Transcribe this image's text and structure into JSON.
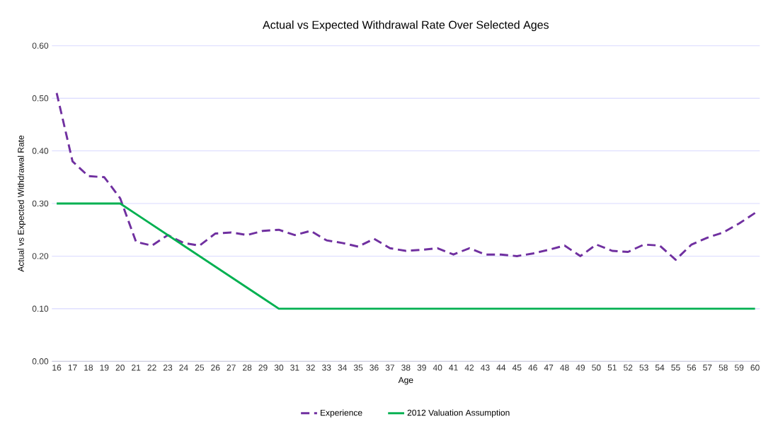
{
  "chart_data": {
    "type": "line",
    "title": "Actual vs Expected Withdrawal Rate Over Selected Ages",
    "xlabel": "Age",
    "ylabel": "Actual vs Expected Withdrawal Rate",
    "categories": [
      "16",
      "17",
      "18",
      "19",
      "20",
      "21",
      "22",
      "23",
      "24",
      "25",
      "26",
      "27",
      "28",
      "29",
      "30",
      "31",
      "32",
      "33",
      "34",
      "35",
      "36",
      "37",
      "38",
      "39",
      "40",
      "41",
      "42",
      "43",
      "44",
      "45",
      "46",
      "47",
      "48",
      "49",
      "50",
      "51",
      "52",
      "53",
      "54",
      "55",
      "56",
      "57",
      "58",
      "59",
      "60"
    ],
    "series": [
      {
        "name": "Experience",
        "color": "#7030a0",
        "line_style": "dashed",
        "values": [
          0.51,
          0.38,
          0.352,
          0.35,
          0.31,
          0.227,
          0.22,
          0.24,
          0.225,
          0.22,
          0.243,
          0.245,
          0.24,
          0.248,
          0.25,
          0.24,
          0.248,
          0.23,
          0.225,
          0.218,
          0.233,
          0.215,
          0.21,
          0.212,
          0.215,
          0.203,
          0.215,
          0.203,
          0.203,
          0.2,
          0.205,
          0.212,
          0.22,
          0.2,
          0.222,
          0.21,
          0.208,
          0.222,
          0.22,
          0.193,
          0.222,
          0.235,
          0.245,
          0.262,
          0.282
        ]
      },
      {
        "name": "2012 Valuation Assumption",
        "color": "#00b050",
        "line_style": "solid",
        "values": [
          0.3,
          0.3,
          0.3,
          0.3,
          0.3,
          0.28,
          0.26,
          0.24,
          0.22,
          0.2,
          0.18,
          0.16,
          0.14,
          0.12,
          0.1,
          0.1,
          0.1,
          0.1,
          0.1,
          0.1,
          0.1,
          0.1,
          0.1,
          0.1,
          0.1,
          0.1,
          0.1,
          0.1,
          0.1,
          0.1,
          0.1,
          0.1,
          0.1,
          0.1,
          0.1,
          0.1,
          0.1,
          0.1,
          0.1,
          0.1,
          0.1,
          0.1,
          0.1,
          0.1,
          0.1
        ]
      }
    ],
    "ylim": [
      0,
      0.6
    ],
    "yticks": [
      {
        "value": 0,
        "label": "0.00"
      },
      {
        "value": 0.1,
        "label": "0.10"
      },
      {
        "value": 0.2,
        "label": "0.20"
      },
      {
        "value": 0.3,
        "label": "0.30"
      },
      {
        "value": 0.4,
        "label": "0.40"
      },
      {
        "value": 0.5,
        "label": "0.50"
      },
      {
        "value": 0.6,
        "label": "0.60"
      }
    ],
    "grid": "y",
    "legend": "bottom",
    "marker": "none"
  }
}
